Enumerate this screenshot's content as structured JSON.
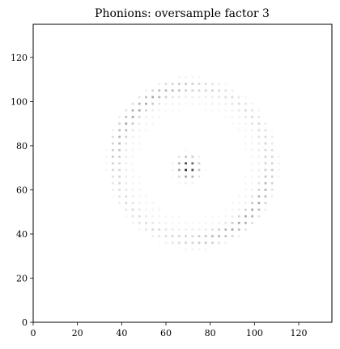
{
  "chart_data": {
    "type": "heatmap",
    "title": "Phonions: oversample factor 3",
    "xlabel": "",
    "ylabel": "",
    "xlim": [
      0,
      135
    ],
    "ylim": [
      0,
      135
    ],
    "xticks": [
      0,
      20,
      40,
      60,
      80,
      100,
      120
    ],
    "yticks": [
      0,
      20,
      40,
      60,
      80,
      100,
      120
    ],
    "grid": false,
    "colormap": "Greys",
    "background_color": "#ffffff",
    "sample_spacing": 3,
    "ring_center": [
      72,
      72
    ],
    "ring_radius": 35,
    "peak_center": [
      70,
      70
    ],
    "peak_value": 0.95,
    "max_ring_intensity": 0.35
  }
}
